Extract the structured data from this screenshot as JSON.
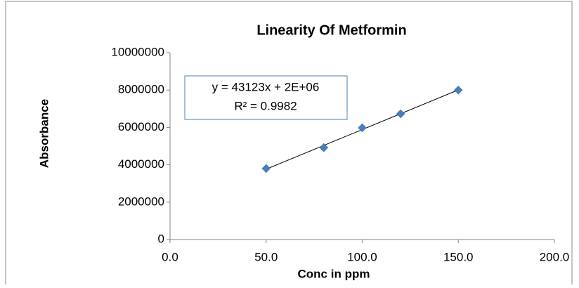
{
  "chart_data": {
    "type": "scatter",
    "title": "Linearity Of Metformin",
    "x_label": "Conc in ppm",
    "y_label": "Absorbance",
    "series": [
      {
        "name": "Absorbance",
        "color": "#4a7ebb",
        "x": [
          50,
          80,
          100,
          120,
          150
        ],
        "values": [
          3800000,
          4920000,
          5980000,
          6730000,
          8000000
        ]
      }
    ],
    "trendline": {
      "equation": "y = 43123x + 2E+06",
      "r_squared": "R² = 0.9982",
      "color": "#000000"
    },
    "xlim": [
      0,
      200
    ],
    "xticks": [
      {
        "value": 0,
        "label": "0.0"
      },
      {
        "value": 50,
        "label": "50.0"
      },
      {
        "value": 100,
        "label": "100.0"
      },
      {
        "value": 150,
        "label": "150.0"
      },
      {
        "value": 200,
        "label": "200.0"
      }
    ],
    "ylim": [
      0,
      10000000
    ],
    "yticks": [
      0,
      2000000,
      4000000,
      6000000,
      8000000,
      10000000
    ],
    "grid": false
  }
}
